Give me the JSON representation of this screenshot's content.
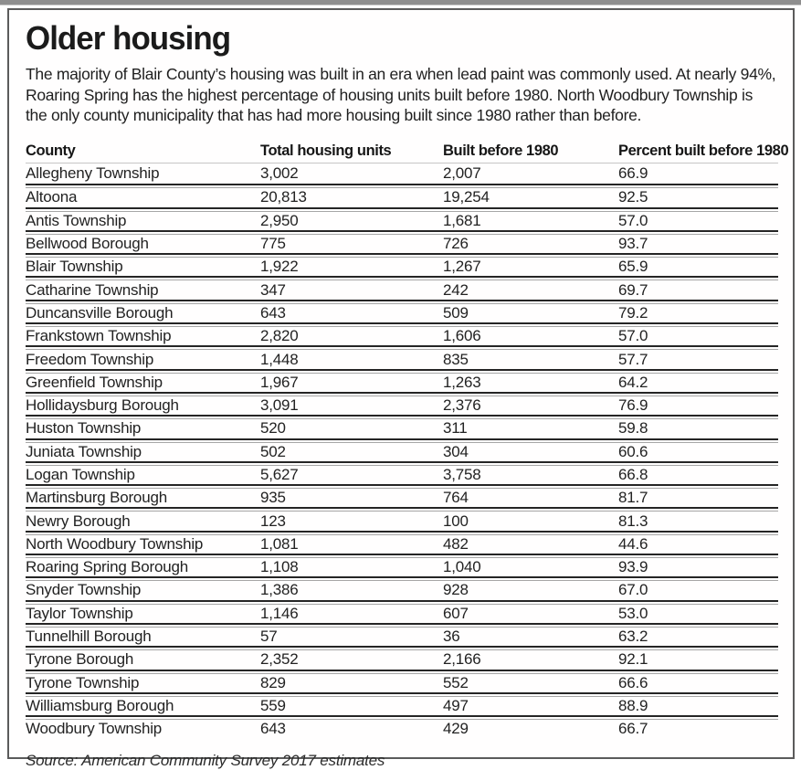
{
  "title": "Older housing",
  "intro": "The majority of Blair County’s housing was built in an era when lead paint was commonly used. At nearly 94%, Roaring Spring has the highest percentage of housing units built before 1980. North Woodbury Township is the only county municipality that has had more housing built since 1980 rather than before.",
  "source": "Source: American Community Survey 2017 estimates",
  "chart_data": {
    "type": "table",
    "title": "Older housing",
    "columns": [
      "County",
      "Total housing units",
      "Built before 1980",
      "Percent built before 1980"
    ],
    "rows": [
      [
        "Allegheny Township",
        "3,002",
        "2,007",
        "66.9"
      ],
      [
        "Altoona",
        "20,813",
        "19,254",
        "92.5"
      ],
      [
        "Antis Township",
        "2,950",
        "1,681",
        "57.0"
      ],
      [
        "Bellwood Borough",
        "775",
        "726",
        "93.7"
      ],
      [
        "Blair Township",
        "1,922",
        "1,267",
        "65.9"
      ],
      [
        "Catharine Township",
        "347",
        "242",
        "69.7"
      ],
      [
        "Duncansville Borough",
        "643",
        "509",
        "79.2"
      ],
      [
        "Frankstown Township",
        "2,820",
        "1,606",
        "57.0"
      ],
      [
        "Freedom Township",
        "1,448",
        "835",
        "57.7"
      ],
      [
        "Greenfield Township",
        "1,967",
        "1,263",
        "64.2"
      ],
      [
        "Hollidaysburg Borough",
        "3,091",
        "2,376",
        "76.9"
      ],
      [
        "Huston Township",
        "520",
        "311",
        "59.8"
      ],
      [
        "Juniata Township",
        "502",
        "304",
        "60.6"
      ],
      [
        "Logan Township",
        "5,627",
        "3,758",
        "66.8"
      ],
      [
        "Martinsburg Borough",
        "935",
        "764",
        "81.7"
      ],
      [
        "Newry Borough",
        "123",
        "100",
        "81.3"
      ],
      [
        "North Woodbury Township",
        "1,081",
        "482",
        "44.6"
      ],
      [
        "Roaring Spring Borough",
        "1,108",
        "1,040",
        "93.9"
      ],
      [
        "Snyder Township",
        "1,386",
        "928",
        "67.0"
      ],
      [
        "Taylor Township",
        "1,146",
        "607",
        "53.0"
      ],
      [
        "Tunnelhill Borough",
        "57",
        "36",
        "63.2"
      ],
      [
        "Tyrone Borough",
        "2,352",
        "2,166",
        "92.1"
      ],
      [
        "Tyrone Township",
        "829",
        "552",
        "66.6"
      ],
      [
        "Williamsburg Borough",
        "559",
        "497",
        "88.9"
      ],
      [
        "Woodbury Township",
        "643",
        "429",
        "66.7"
      ]
    ]
  }
}
